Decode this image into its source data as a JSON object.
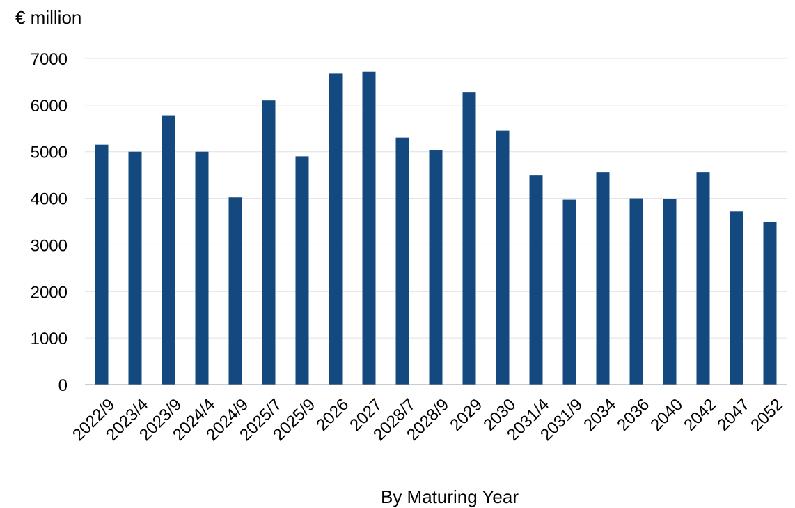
{
  "chart_data": {
    "type": "bar",
    "title": "",
    "ylabel": "€ million",
    "xlabel": "By Maturing Year",
    "ylim": [
      0,
      7000
    ],
    "yticks": [
      0,
      1000,
      2000,
      3000,
      4000,
      5000,
      6000,
      7000
    ],
    "grid": true,
    "legend": "none",
    "bar_color": "#13497f",
    "categories": [
      "2022/9",
      "2023/4",
      "2023/9",
      "2024/4",
      "2024/9",
      "2025/7",
      "2025/9",
      "2026",
      "2027",
      "2028/7",
      "2028/9",
      "2029",
      "2030",
      "2031/4",
      "2031/9",
      "2034",
      "2036",
      "2040",
      "2042",
      "2047",
      "2052"
    ],
    "values": [
      5150,
      5000,
      5780,
      5000,
      4020,
      6100,
      4900,
      6680,
      6720,
      5300,
      5040,
      6280,
      5450,
      4500,
      3970,
      4560,
      4000,
      3990,
      4560,
      3720,
      3500
    ]
  }
}
